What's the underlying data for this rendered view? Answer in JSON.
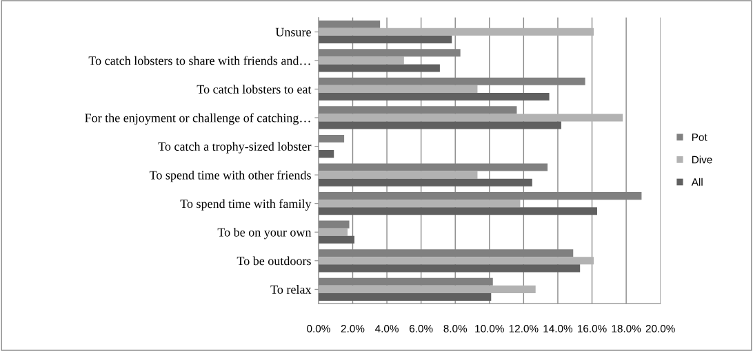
{
  "chart_data": {
    "type": "bar",
    "orientation": "horizontal",
    "categories": [
      "Unsure",
      "To catch lobsters to share with friends and…",
      "To catch lobsters to eat",
      "For the enjoyment or challenge of catching…",
      "To catch a trophy-sized lobster",
      "To spend time with other friends",
      "To spend time with family",
      "To be on your own",
      "To be outdoors",
      "To relax"
    ],
    "series": [
      {
        "name": "Pot",
        "color": "#808080",
        "values": [
          3.6,
          8.3,
          15.6,
          11.6,
          1.5,
          13.4,
          18.9,
          1.8,
          14.9,
          10.2
        ]
      },
      {
        "name": "Dive",
        "color": "#b2b2b2",
        "values": [
          16.1,
          5.0,
          9.3,
          17.8,
          0,
          9.3,
          11.8,
          1.7,
          16.1,
          12.7
        ]
      },
      {
        "name": "All",
        "color": "#606060",
        "values": [
          7.8,
          7.1,
          13.5,
          14.2,
          0.9,
          12.5,
          16.3,
          2.1,
          15.3,
          10.1
        ]
      }
    ],
    "xlim": [
      0,
      20
    ],
    "xticks": [
      {
        "value": 0,
        "label": "0.0%"
      },
      {
        "value": 2,
        "label": "2.0%"
      },
      {
        "value": 4,
        "label": "4.0%"
      },
      {
        "value": 6,
        "label": "6.0%"
      },
      {
        "value": 8,
        "label": "8.0%"
      },
      {
        "value": 10,
        "label": "10.0%"
      },
      {
        "value": 12,
        "label": "12.0%"
      },
      {
        "value": 14,
        "label": "14.0%"
      },
      {
        "value": 16,
        "label": "16.0%"
      },
      {
        "value": 18,
        "label": "18.0%"
      },
      {
        "value": 20,
        "label": "20.0%"
      }
    ],
    "grid": "x",
    "legend": "right"
  }
}
